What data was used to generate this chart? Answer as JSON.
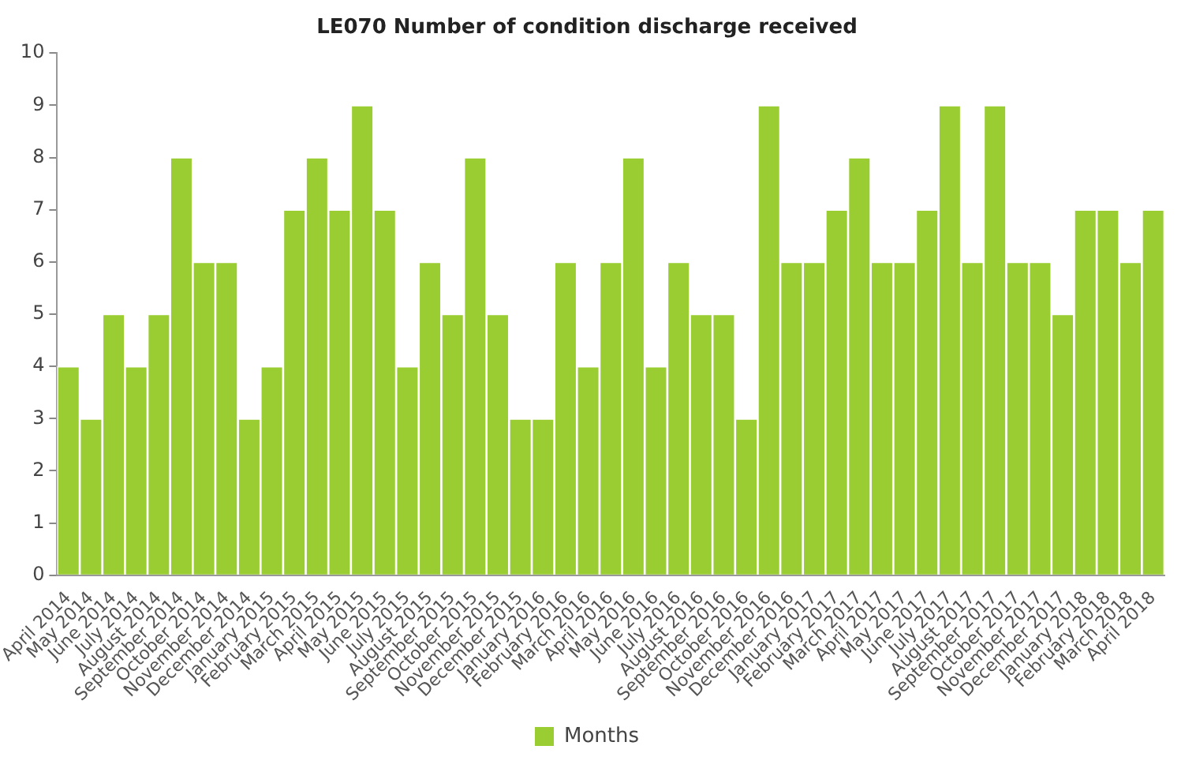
{
  "chart_data": {
    "type": "bar",
    "title": "LE070 Number of condition discharge received",
    "categories": [
      "April 2014",
      "May 2014",
      "June 2014",
      "July 2014",
      "August 2014",
      "September 2014",
      "October 2014",
      "November 2014",
      "December 2014",
      "January 2015",
      "February 2015",
      "March 2015",
      "April 2015",
      "May 2015",
      "June 2015",
      "July 2015",
      "August 2015",
      "September 2015",
      "October 2015",
      "November 2015",
      "December 2015",
      "January 2016",
      "February 2016",
      "March 2016",
      "April 2016",
      "May 2016",
      "June 2016",
      "July 2016",
      "August 2016",
      "September 2016",
      "October 2016",
      "November 2016",
      "December 2016",
      "January 2017",
      "February 2017",
      "March 2017",
      "April 2017",
      "May 2017",
      "June 2017",
      "July 2017",
      "August 2017",
      "September 2017",
      "October 2017",
      "November 2017",
      "December 2017",
      "January 2018",
      "February 2018",
      "March 2018",
      "April 2018"
    ],
    "series": [
      {
        "name": "Months",
        "color": "#9acd32",
        "values": [
          4,
          3,
          5,
          4,
          5,
          8,
          6,
          6,
          3,
          4,
          7,
          8,
          7,
          9,
          7,
          4,
          6,
          5,
          8,
          5,
          3,
          3,
          6,
          4,
          6,
          8,
          4,
          6,
          5,
          5,
          3,
          9,
          6,
          6,
          7,
          8,
          6,
          6,
          7,
          9,
          6,
          9,
          6,
          6,
          5,
          7,
          7,
          6,
          7
        ]
      }
    ],
    "ylim": [
      0,
      10
    ],
    "yticks": [
      0,
      1,
      2,
      3,
      4,
      5,
      6,
      7,
      8,
      9,
      10
    ],
    "grid": false,
    "legend": "bottom"
  }
}
